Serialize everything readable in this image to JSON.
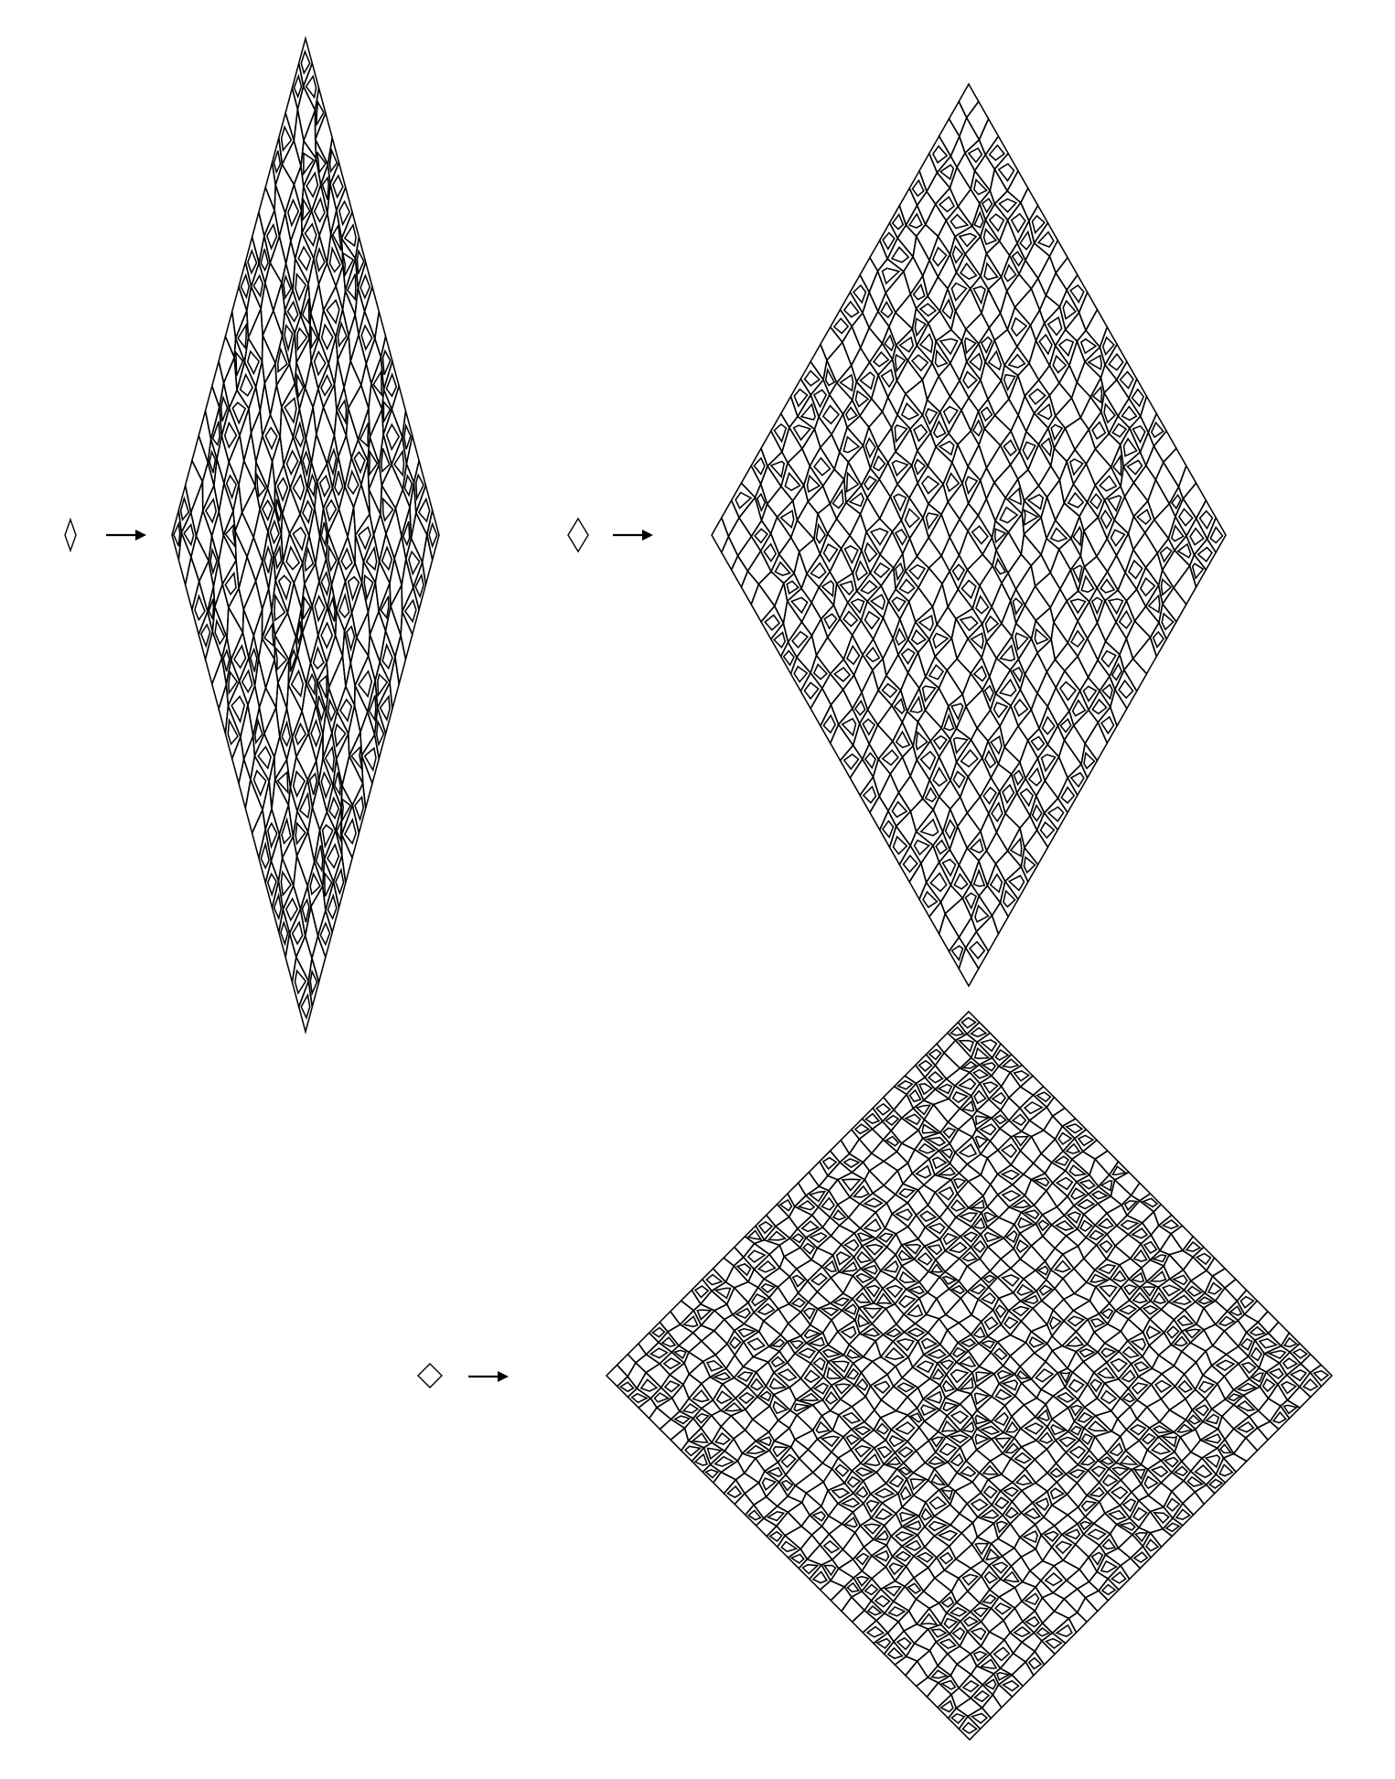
{
  "figure": {
    "description_free": true,
    "stroke_color": "#000000",
    "background": "#ffffff",
    "panels": [
      {
        "id": "thin",
        "seed_rhombus_angle_deg": 36,
        "arrow": "right-arrow",
        "deflation_levels": 4
      },
      {
        "id": "medium",
        "seed_rhombus_angle_deg": 72,
        "arrow": "right-arrow",
        "deflation_levels": 4
      },
      {
        "id": "square",
        "seed_rhombus_angle_deg": 90,
        "arrow": "right-arrow",
        "deflation_levels": 4
      }
    ]
  }
}
